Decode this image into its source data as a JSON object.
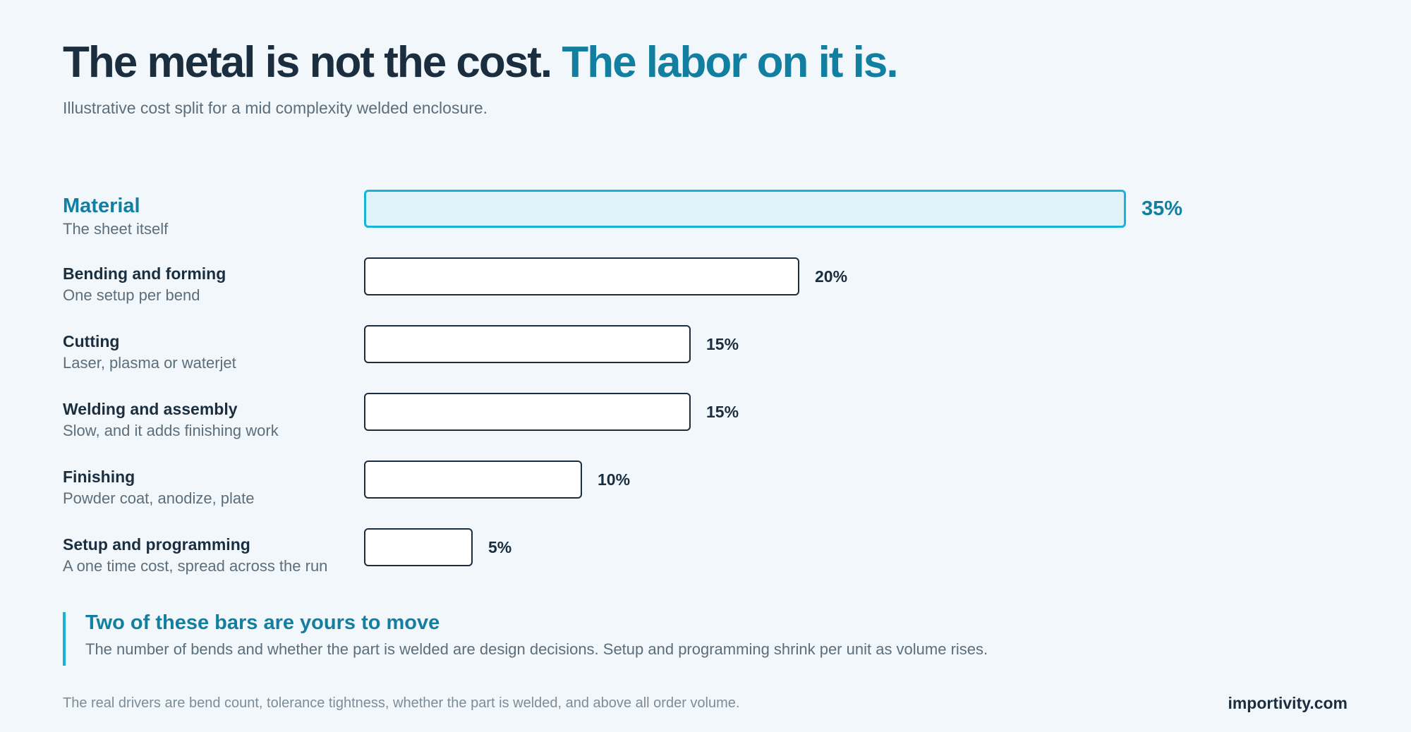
{
  "header": {
    "title_main": "The metal is not the cost.",
    "title_accent": "The labor on it is.",
    "subtitle": "Illustrative cost split for a mid complexity welded enclosure."
  },
  "chart_data": {
    "type": "bar",
    "orientation": "horizontal",
    "value_suffix": "%",
    "xlim": [
      0,
      35
    ],
    "grid": false,
    "categories": [
      {
        "name": "Material",
        "description": "The sheet itself",
        "value": 35,
        "highlight": true
      },
      {
        "name": "Bending and forming",
        "description": "One setup per bend",
        "value": 20,
        "highlight": false
      },
      {
        "name": "Cutting",
        "description": "Laser, plasma or waterjet",
        "value": 15,
        "highlight": false
      },
      {
        "name": "Welding and assembly",
        "description": "Slow, and it adds finishing work",
        "value": 15,
        "highlight": false
      },
      {
        "name": "Finishing",
        "description": "Powder coat, anodize, plate",
        "value": 10,
        "highlight": false
      },
      {
        "name": "Setup and programming",
        "description": "A one time cost, spread across the run",
        "value": 5,
        "highlight": false
      }
    ],
    "colors": {
      "highlight_fill": "#dff2f8",
      "highlight_border": "#1ab3d6",
      "default_fill": "#ffffff",
      "default_border": "#1a2e40"
    }
  },
  "callout": {
    "title": "Two of these bars are yours to move",
    "text": "The number of bends and whether the part is welded are design decisions. Setup and programming shrink per unit as volume rises."
  },
  "footer": {
    "note": "The real drivers are bend count, tolerance tightness, whether the part is welded, and above all order volume.",
    "brand": "importivity.com"
  }
}
